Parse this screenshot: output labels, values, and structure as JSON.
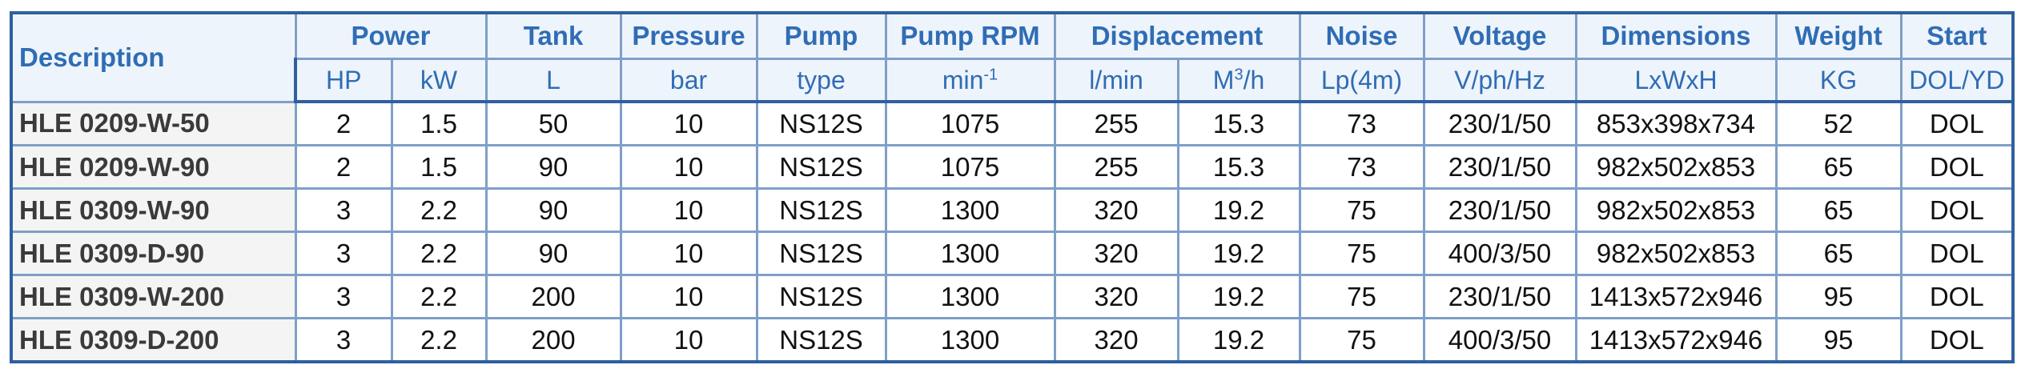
{
  "header": {
    "description": "Description",
    "groups": [
      {
        "id": "power",
        "label": "Power",
        "span": 2
      },
      {
        "id": "tank",
        "label": "Tank",
        "span": 1
      },
      {
        "id": "pressure",
        "label": "Pressure",
        "span": 1
      },
      {
        "id": "pump",
        "label": "Pump",
        "span": 1
      },
      {
        "id": "pump-rpm",
        "label": "Pump RPM",
        "span": 1
      },
      {
        "id": "displacement",
        "label": "Displacement",
        "span": 2
      },
      {
        "id": "noise",
        "label": "Noise",
        "span": 1
      },
      {
        "id": "voltage",
        "label": "Voltage",
        "span": 1
      },
      {
        "id": "dimensions",
        "label": "Dimensions",
        "span": 1
      },
      {
        "id": "weight",
        "label": "Weight",
        "span": 1
      },
      {
        "id": "start",
        "label": "Start",
        "span": 1
      }
    ],
    "units": [
      {
        "id": "hp",
        "label": "HP"
      },
      {
        "id": "kw",
        "label": "kW"
      },
      {
        "id": "l",
        "label": "L"
      },
      {
        "id": "bar",
        "label": "bar"
      },
      {
        "id": "type",
        "label": "type"
      },
      {
        "id": "min",
        "label": "min",
        "sup": "-1"
      },
      {
        "id": "lmin",
        "label": "l/min"
      },
      {
        "id": "m3h",
        "label": "M",
        "sup": "3",
        "suffix": "/h"
      },
      {
        "id": "lp4m",
        "label": "Lp(4m)"
      },
      {
        "id": "vphhz",
        "label": "V/ph/Hz"
      },
      {
        "id": "lxwxh",
        "label": "LxWxH"
      },
      {
        "id": "kg",
        "label": "KG"
      },
      {
        "id": "dolyd",
        "label": "DOL/YD"
      }
    ]
  },
  "rows": [
    {
      "model": "HLE 0209-W-50",
      "cells": [
        "2",
        "1.5",
        "50",
        "10",
        "NS12S",
        "1075",
        "255",
        "15.3",
        "73",
        "230/1/50",
        "853x398x734",
        "52",
        "DOL"
      ]
    },
    {
      "model": "HLE 0209-W-90",
      "cells": [
        "2",
        "1.5",
        "90",
        "10",
        "NS12S",
        "1075",
        "255",
        "15.3",
        "73",
        "230/1/50",
        "982x502x853",
        "65",
        "DOL"
      ]
    },
    {
      "model": "HLE 0309-W-90",
      "cells": [
        "3",
        "2.2",
        "90",
        "10",
        "NS12S",
        "1300",
        "320",
        "19.2",
        "75",
        "230/1/50",
        "982x502x853",
        "65",
        "DOL"
      ]
    },
    {
      "model": "HLE 0309-D-90",
      "cells": [
        "3",
        "2.2",
        "90",
        "10",
        "NS12S",
        "1300",
        "320",
        "19.2",
        "75",
        "400/3/50",
        "982x502x853",
        "65",
        "DOL"
      ]
    },
    {
      "model": "HLE 0309-W-200",
      "cells": [
        "3",
        "2.2",
        "200",
        "10",
        "NS12S",
        "1300",
        "320",
        "19.2",
        "75",
        "230/1/50",
        "1413x572x946",
        "95",
        "DOL"
      ]
    },
    {
      "model": "HLE 0309-D-200",
      "cells": [
        "3",
        "2.2",
        "200",
        "10",
        "NS12S",
        "1300",
        "320",
        "19.2",
        "75",
        "400/3/50",
        "1413x572x946",
        "95",
        "DOL"
      ]
    }
  ],
  "colors": {
    "header_text": "#2f6db5",
    "header_bg": "#eef4fb",
    "border": "#7f9fc8",
    "border_strong": "#2f5f9e",
    "model_bg": "#f4f4f4"
  }
}
